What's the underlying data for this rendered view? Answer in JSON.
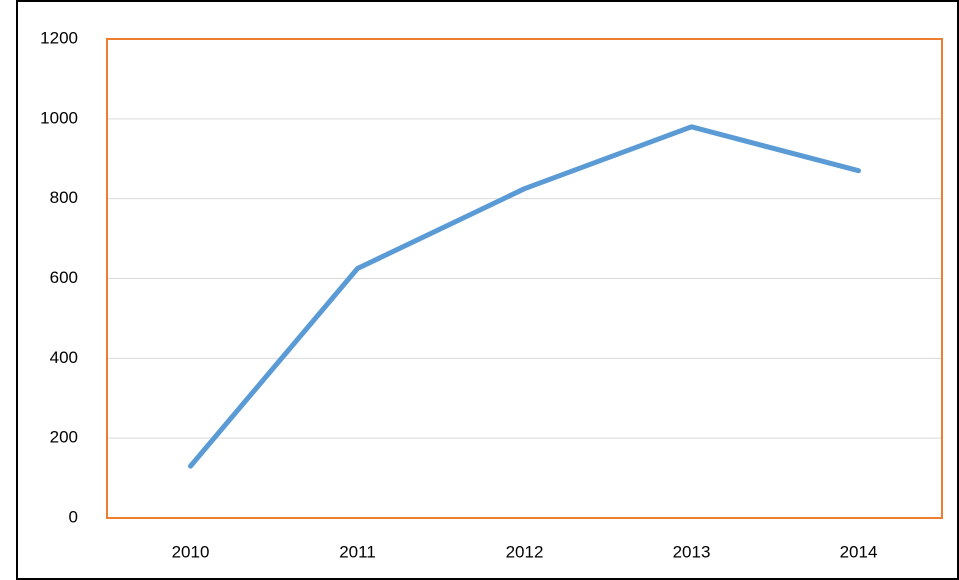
{
  "chart_data": {
    "type": "line",
    "categories": [
      "2010",
      "2011",
      "2012",
      "2013",
      "2014"
    ],
    "series": [
      {
        "color": "#5b9bd5",
        "values": [
          130,
          625,
          825,
          980,
          870
        ]
      }
    ],
    "ylim": [
      0,
      1200
    ],
    "yticks": [
      0,
      200,
      400,
      600,
      800,
      1000,
      1200
    ],
    "grid": true,
    "frame_color": "#ed7d31"
  }
}
